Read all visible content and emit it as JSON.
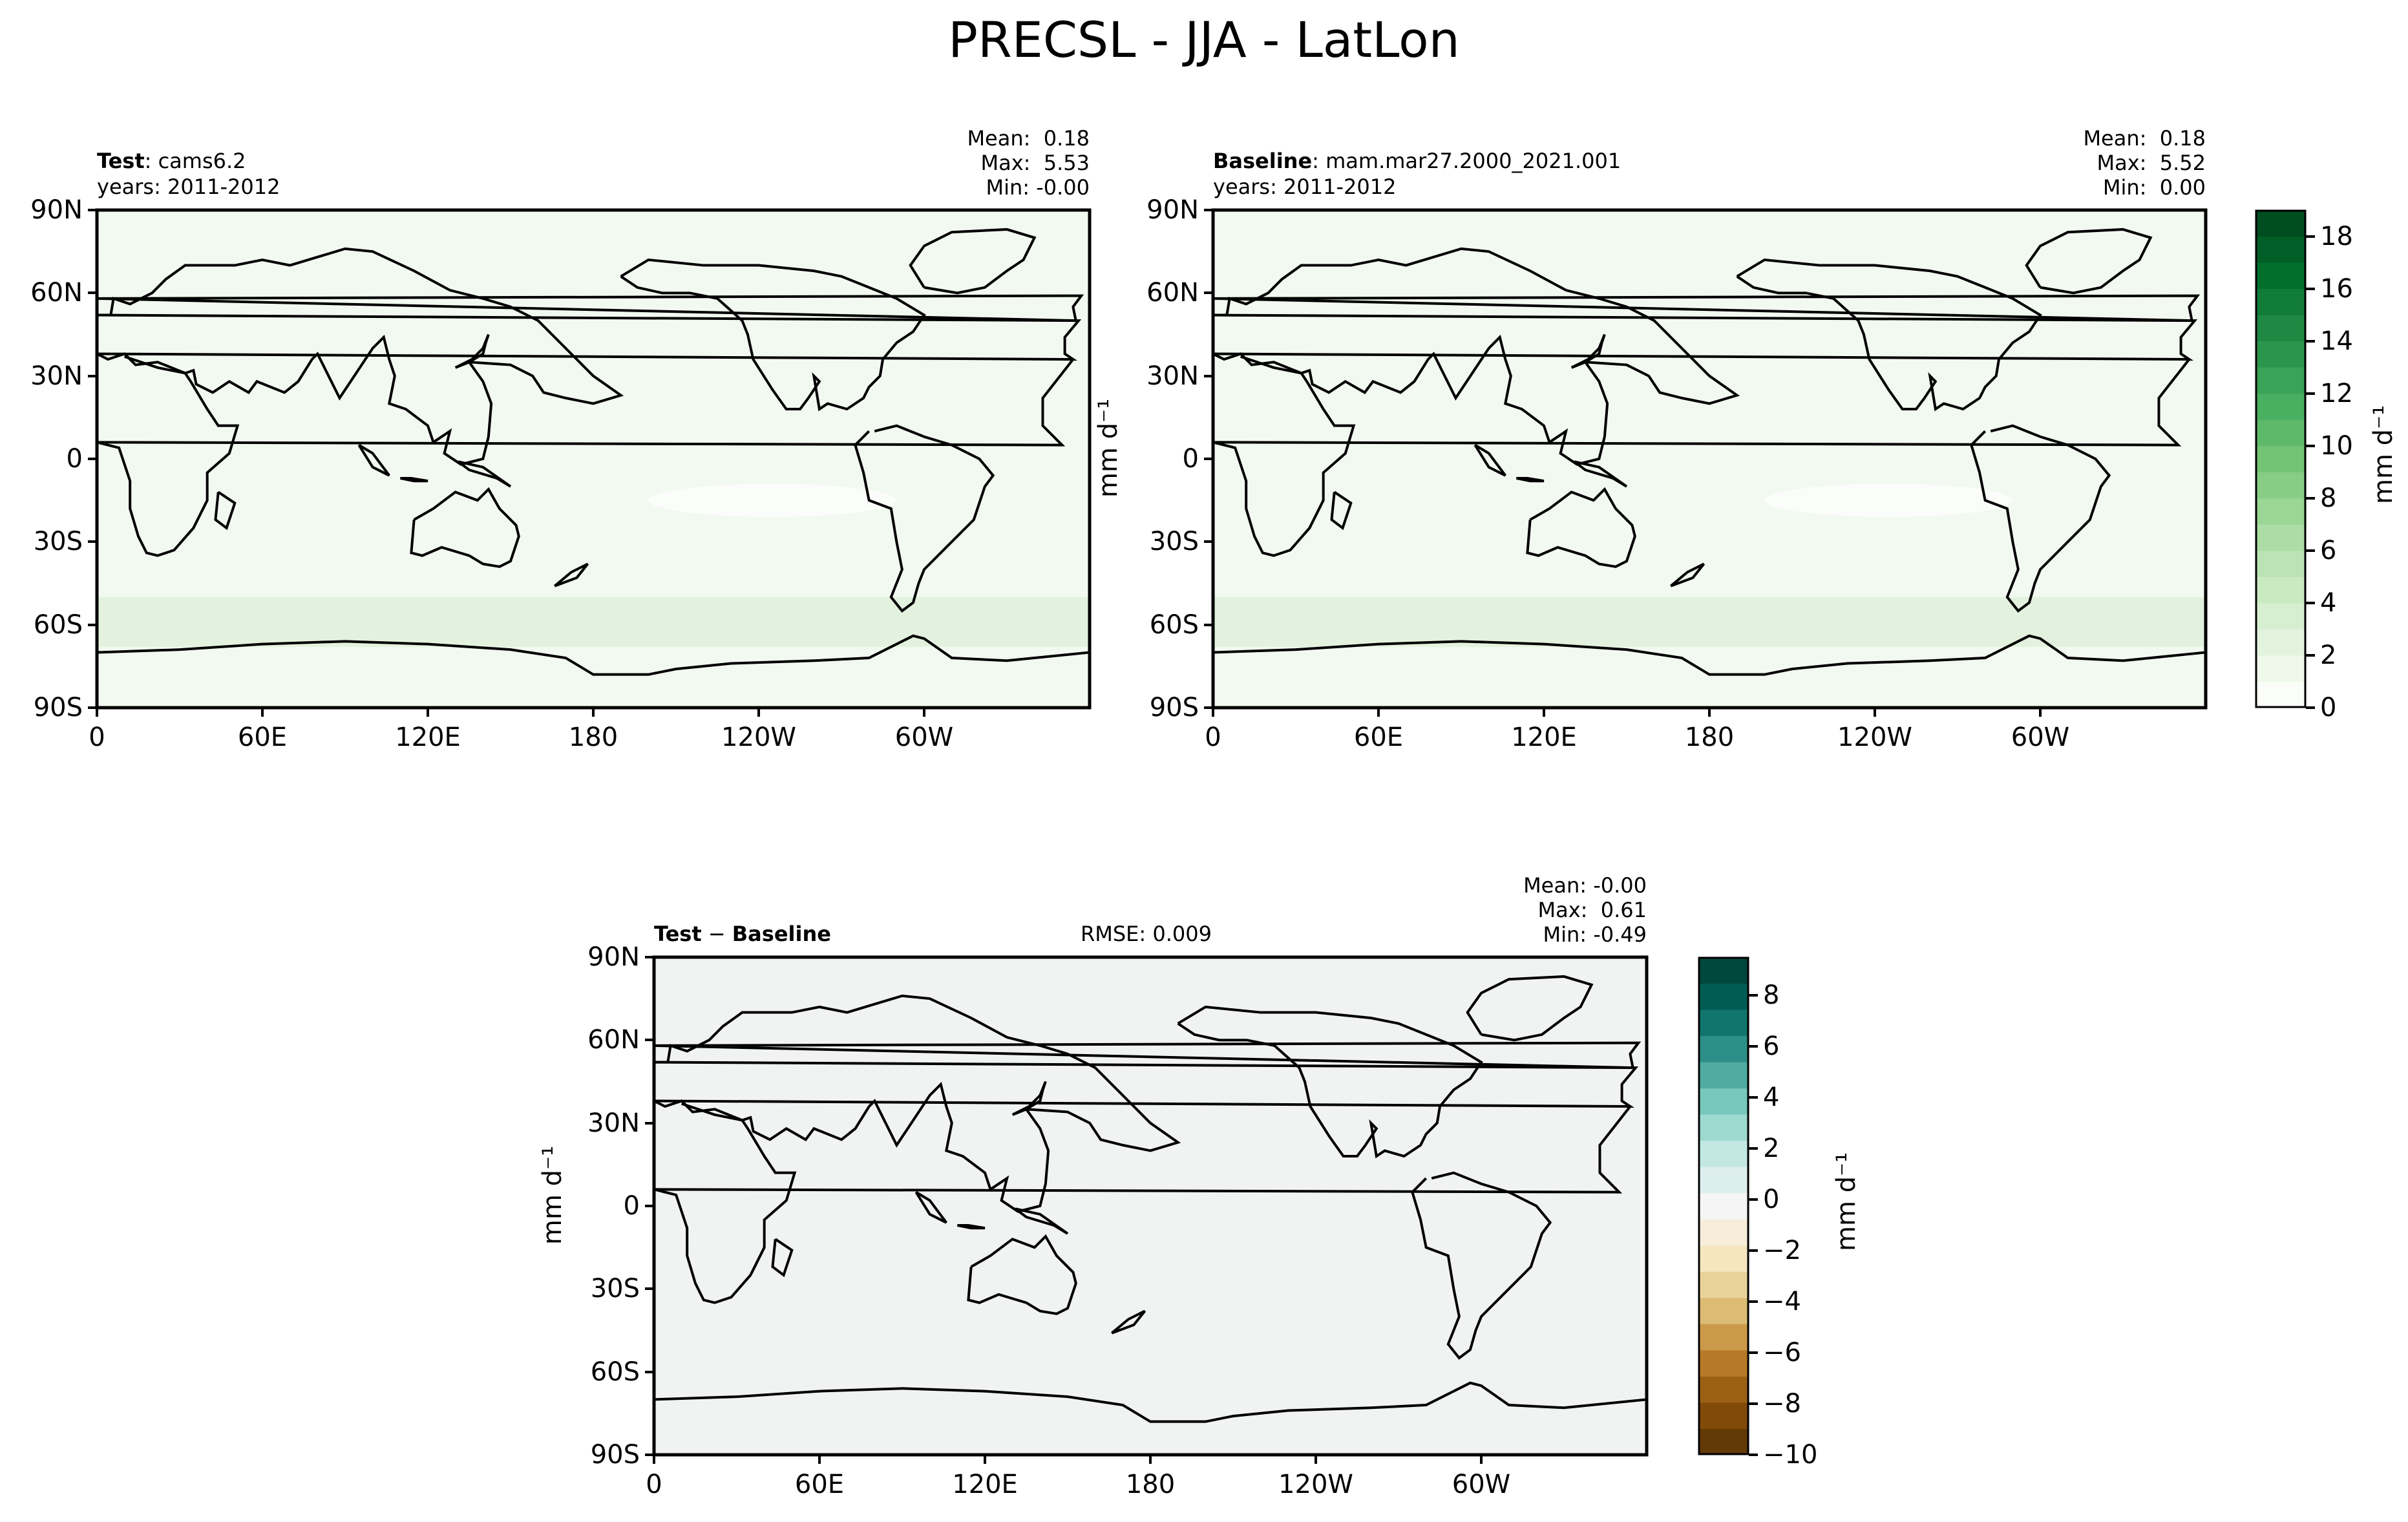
{
  "title": "PRECSL - JJA - LatLon",
  "lat_ticks": [
    "90N",
    "60N",
    "30N",
    "0",
    "30S",
    "60S",
    "90S"
  ],
  "lon_ticks": [
    "0",
    "60E",
    "120E",
    "180",
    "120W",
    "60W"
  ],
  "panels": {
    "test": {
      "name_bold": "Test",
      "name_rest": ": cams6.2",
      "years": "years: 2011-2012",
      "mean": "Mean:  0.18",
      "max": "Max:  5.53",
      "min": "Min: -0.00"
    },
    "baseline": {
      "name_bold": "Baseline",
      "name_rest": ": mam.mar27.2000_2021.001",
      "years": "years: 2011-2012",
      "mean": "Mean:  0.18",
      "max": "Max:  5.52",
      "min": "Min:  0.00"
    },
    "diff": {
      "name_bold_1": "Test",
      "name_sep": " − ",
      "name_bold_2": "Baseline",
      "rmse": "RMSE: 0.009",
      "mean": "Mean: -0.00",
      "max": "Max:  0.61",
      "min": "Min: -0.49"
    }
  },
  "colorbars": {
    "precip": {
      "units": "mm d⁻¹",
      "ticks": [
        "18",
        "16",
        "14",
        "12",
        "10",
        "8",
        "6",
        "4",
        "2",
        "0"
      ],
      "range": [
        0,
        19
      ]
    },
    "diff": {
      "units": "mm d⁻¹",
      "ticks": [
        "8",
        "6",
        "4",
        "2",
        "0",
        "−2",
        "−4",
        "−6",
        "−8",
        "−10"
      ],
      "range": [
        -10,
        9.5
      ]
    }
  },
  "colors": {
    "field_bg": "#f2f9f0",
    "diff_bg": "#f1f2f2",
    "coast": "#000000"
  },
  "chart_data": [
    {
      "type": "heatmap",
      "title": "Test : cams6.2",
      "xlabel": "",
      "ylabel": "",
      "xlim": [
        0,
        360
      ],
      "ylim": [
        -90,
        90
      ],
      "stats": {
        "mean": 0.18,
        "max": 5.53,
        "min": -0.0
      },
      "color_range": [
        0,
        19
      ]
    },
    {
      "type": "heatmap",
      "title": "Baseline : mam.mar27.2000_2021.001",
      "xlabel": "",
      "ylabel": "",
      "xlim": [
        0,
        360
      ],
      "ylim": [
        -90,
        90
      ],
      "stats": {
        "mean": 0.18,
        "max": 5.52,
        "min": 0.0
      },
      "color_range": [
        0,
        19
      ]
    },
    {
      "type": "heatmap",
      "title": "Test − Baseline",
      "xlabel": "",
      "ylabel": "",
      "xlim": [
        0,
        360
      ],
      "ylim": [
        -90,
        90
      ],
      "stats": {
        "mean": -0.0,
        "max": 0.61,
        "min": -0.49,
        "rmse": 0.009
      },
      "color_range": [
        -10,
        9.5
      ]
    }
  ]
}
